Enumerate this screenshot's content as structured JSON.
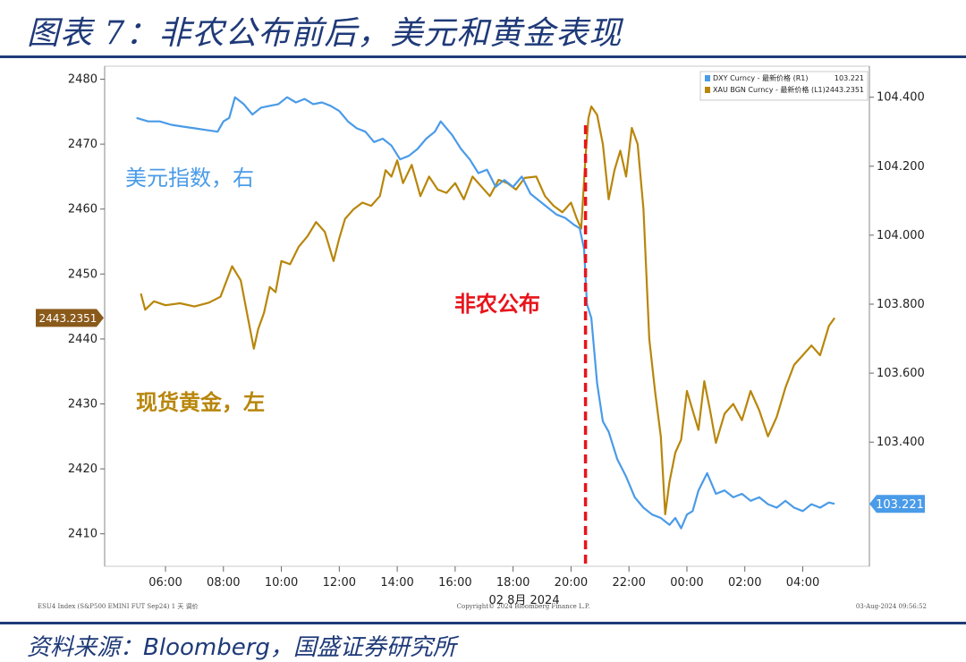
{
  "header": {
    "title": "图表 7：非农公布前后，美元和黄金表现"
  },
  "footer": {
    "source_prefix": "资料来源：",
    "source_brand": "Bloomberg",
    "source_suffix": "，国盛证券研究所"
  },
  "chart_data": {
    "type": "line",
    "date_label": "02 8月 2024",
    "x_ticks": [
      "06:00",
      "08:00",
      "10:00",
      "12:00",
      "14:00",
      "16:00",
      "18:00",
      "20:00",
      "22:00",
      "00:00",
      "02:00",
      "04:00"
    ],
    "y_left": {
      "range": [
        2405,
        2482
      ],
      "ticks": [
        2410,
        2420,
        2430,
        2440,
        2450,
        2460,
        2470,
        2480
      ]
    },
    "y_right": {
      "range": [
        103.04,
        104.49
      ],
      "ticks": [
        "103.400",
        "103.600",
        "103.800",
        "104.000",
        "104.200",
        "104.400"
      ]
    },
    "grid": false,
    "legend_position": "top-right",
    "legend": [
      {
        "name": "DXY Curncy - 最新价格 (R1)",
        "last": "103.221",
        "color": "#4a9be8"
      },
      {
        "name": "XAU BGN Curncy - 最新价格 (L1)",
        "last": "2443.2351",
        "color": "#b8860b"
      }
    ],
    "badges": {
      "left_last": "2443.2351",
      "right_last": "103.221"
    },
    "annotations": {
      "usd": "美元指数，右",
      "gold": "现货黄金，左",
      "nfp": "非农公布",
      "nfp_time": 20.5
    },
    "footer_left": "ESU4 Index (S&P500 EMINI FUT  Sep24) 1 天  调价",
    "footer_center": "Copyright© 2024 Bloomberg Finance L.P.",
    "footer_right": "03-Aug-2024 09:56:52",
    "series": [
      {
        "name": "XAU BGN Curncy",
        "axis": "left",
        "color": "#b8860b",
        "x": [
          5.15,
          5.3,
          5.6,
          6.0,
          6.5,
          7.0,
          7.5,
          7.9,
          8.3,
          8.6,
          8.9,
          9.05,
          9.2,
          9.4,
          9.6,
          9.8,
          10.0,
          10.3,
          10.6,
          10.9,
          11.2,
          11.5,
          11.8,
          12.0,
          12.2,
          12.5,
          12.8,
          13.1,
          13.4,
          13.6,
          13.8,
          14.0,
          14.2,
          14.5,
          14.8,
          15.1,
          15.4,
          15.7,
          16.0,
          16.3,
          16.6,
          16.9,
          17.2,
          17.5,
          17.8,
          18.1,
          18.4,
          18.8,
          19.1,
          19.4,
          19.7,
          20.0,
          20.2,
          20.35,
          20.5,
          20.6,
          20.7,
          20.9,
          21.1,
          21.3,
          21.5,
          21.7,
          21.9,
          22.1,
          22.3,
          22.5,
          22.7,
          22.9,
          23.1,
          23.25,
          23.4,
          23.6,
          23.8,
          24.0,
          24.2,
          24.4,
          24.6,
          24.8,
          25.0,
          25.3,
          25.6,
          25.9,
          26.2,
          26.5,
          26.8,
          27.1,
          27.4,
          27.7,
          28.0,
          28.3,
          28.6,
          28.9,
          29.1
        ],
        "values": [
          2447,
          2444.5,
          2445.8,
          2445.2,
          2445.5,
          2445.0,
          2445.6,
          2446.5,
          2451.2,
          2449.0,
          2442.0,
          2438.5,
          2441.5,
          2444.0,
          2448.0,
          2447.2,
          2452.0,
          2451.5,
          2454.2,
          2455.8,
          2458.0,
          2456.5,
          2452.0,
          2455.5,
          2458.5,
          2460.0,
          2461.0,
          2460.5,
          2462.0,
          2466.0,
          2465.0,
          2467.5,
          2464.0,
          2466.8,
          2462.0,
          2465.0,
          2463.0,
          2462.5,
          2464.0,
          2461.5,
          2465.0,
          2463.5,
          2462.0,
          2464.5,
          2464.0,
          2463.0,
          2464.8,
          2465.0,
          2462.0,
          2460.5,
          2459.5,
          2461.0,
          2458.5,
          2457.0,
          2468.0,
          2474.0,
          2475.8,
          2474.5,
          2470.0,
          2461.5,
          2466.0,
          2469.0,
          2465.0,
          2472.5,
          2470.0,
          2460.0,
          2440.0,
          2432.0,
          2425.0,
          2413.0,
          2418.0,
          2422.5,
          2424.5,
          2432.0,
          2429.0,
          2426.0,
          2433.5,
          2429.0,
          2424.0,
          2428.5,
          2430.0,
          2427.5,
          2432.0,
          2429.0,
          2425.0,
          2428.0,
          2432.5,
          2436.0,
          2437.5,
          2439.0,
          2437.5,
          2442.0,
          2443.2351
        ]
      },
      {
        "name": "DXY Curncy",
        "axis": "right",
        "color": "#4a9be8",
        "x": [
          5.0,
          5.4,
          5.8,
          6.2,
          6.6,
          7.0,
          7.4,
          7.8,
          8.0,
          8.2,
          8.4,
          8.7,
          9.0,
          9.3,
          9.6,
          9.9,
          10.2,
          10.5,
          10.8,
          11.1,
          11.4,
          11.7,
          12.0,
          12.3,
          12.6,
          12.9,
          13.2,
          13.5,
          13.8,
          14.1,
          14.4,
          14.7,
          15.0,
          15.3,
          15.5,
          15.7,
          15.9,
          16.2,
          16.5,
          16.8,
          17.1,
          17.4,
          17.7,
          18.0,
          18.3,
          18.6,
          18.9,
          19.2,
          19.5,
          19.8,
          20.1,
          20.3,
          20.45,
          20.55,
          20.7,
          20.9,
          21.1,
          21.3,
          21.6,
          21.9,
          22.2,
          22.5,
          22.8,
          23.1,
          23.4,
          23.6,
          23.8,
          24.0,
          24.2,
          24.4,
          24.7,
          25.0,
          25.3,
          25.6,
          25.9,
          26.2,
          26.5,
          26.8,
          27.1,
          27.4,
          27.7,
          28.0,
          28.3,
          28.6,
          28.9,
          29.1
        ],
        "values": [
          104.34,
          104.33,
          104.33,
          104.32,
          104.315,
          104.31,
          104.305,
          104.3,
          104.33,
          104.34,
          104.4,
          104.38,
          104.35,
          104.37,
          104.375,
          104.38,
          104.4,
          104.385,
          104.395,
          104.38,
          104.385,
          104.375,
          104.36,
          104.33,
          104.31,
          104.3,
          104.27,
          104.28,
          104.26,
          104.22,
          104.23,
          104.25,
          104.28,
          104.3,
          104.33,
          104.31,
          104.29,
          104.25,
          104.22,
          104.18,
          104.19,
          104.14,
          104.16,
          104.14,
          104.17,
          104.12,
          104.1,
          104.08,
          104.06,
          104.05,
          104.03,
          104.02,
          103.96,
          103.8,
          103.76,
          103.57,
          103.46,
          103.43,
          103.35,
          103.3,
          103.24,
          103.21,
          103.19,
          103.18,
          103.16,
          103.18,
          103.15,
          103.19,
          103.2,
          103.26,
          103.31,
          103.25,
          103.26,
          103.24,
          103.25,
          103.23,
          103.24,
          103.22,
          103.21,
          103.23,
          103.21,
          103.2,
          103.22,
          103.21,
          103.225,
          103.221
        ]
      }
    ]
  }
}
